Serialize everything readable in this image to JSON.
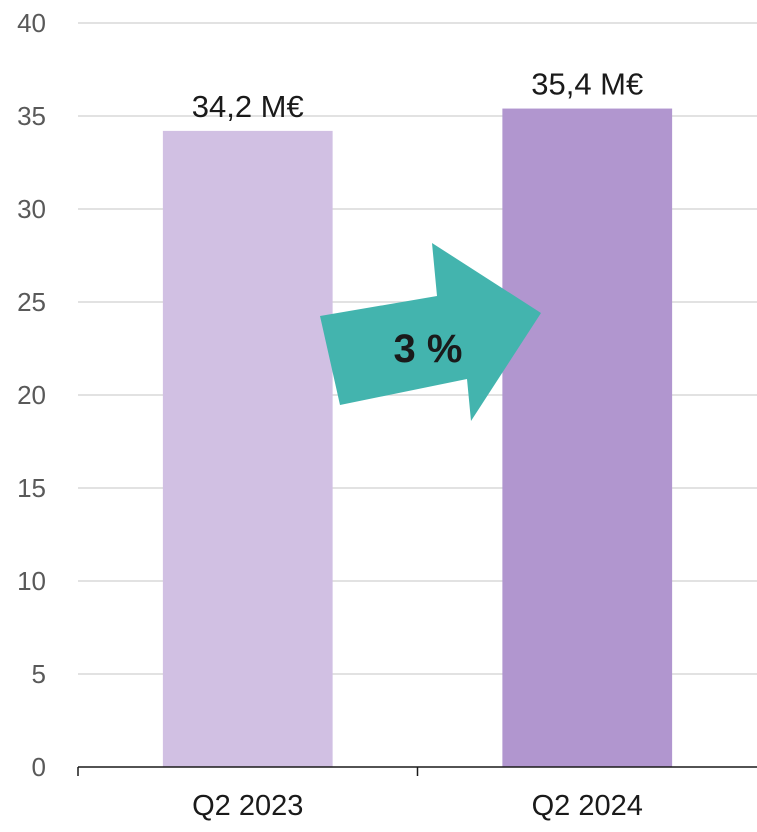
{
  "chart_data": {
    "type": "bar",
    "categories": [
      "Q2 2023",
      "Q2 2024"
    ],
    "values": [
      34.2,
      35.4
    ],
    "data_labels": [
      "34,2 M€",
      "35,4 M€"
    ],
    "colors": [
      "#d1c0e3",
      "#b196cf"
    ],
    "title": "",
    "xlabel": "",
    "ylabel": "",
    "ylim": [
      0,
      40
    ],
    "yticks": [
      0,
      5,
      10,
      15,
      20,
      25,
      30,
      35,
      40
    ],
    "grid": true,
    "legend": "none",
    "annotation": {
      "text": "3 %",
      "shape": "arrow",
      "color": "#43b4ae"
    }
  }
}
